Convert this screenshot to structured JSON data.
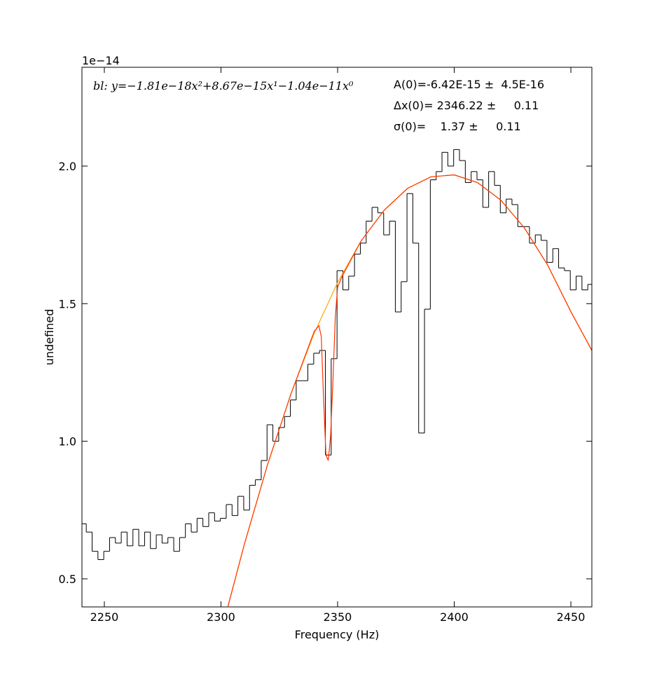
{
  "chart_data": {
    "type": "line",
    "xlabel": "Frequency (Hz)",
    "ylabel": "undefined",
    "y_offset_label": "1e−14",
    "annotations": [
      "bl: y=−1.81e−18x²+8.67e−15x¹−1.04e−11x⁰",
      "A(0)=-6.42E-15 ±  4.5E-16",
      "Δx(0)= 2346.22 ±     0.11",
      "σ(0)=    1.37 ±     0.11"
    ],
    "xlim": [
      2240.4,
      2459
    ],
    "ylim": [
      0.398,
      2.359
    ],
    "xticks": [
      2250,
      2300,
      2350,
      2400,
      2450
    ],
    "yticks": [
      0.5,
      {
        "value": 1,
        "label": "1.0"
      },
      1.5,
      {
        "value": 2,
        "label": "2.0"
      }
    ],
    "series": [
      {
        "style": "steps",
        "color": "#000000",
        "x": [
          2241,
          2243.5,
          2246,
          2248.5,
          2251,
          2253.5,
          2256,
          2258.5,
          2261,
          2263.5,
          2266,
          2268.5,
          2271,
          2273.5,
          2276,
          2278.5,
          2281,
          2283.5,
          2286,
          2288.5,
          2291,
          2293.5,
          2296,
          2298.5,
          2301,
          2303.5,
          2306,
          2308.5,
          2311,
          2313.5,
          2316,
          2318.5,
          2321,
          2323.5,
          2326,
          2328.5,
          2331,
          2333.5,
          2336,
          2338.5,
          2341,
          2343.5,
          2346,
          2348.5,
          2351,
          2353.5,
          2356,
          2358.5,
          2361,
          2363.5,
          2366,
          2368.5,
          2371,
          2373.5,
          2376,
          2378.5,
          2381,
          2383.5,
          2386,
          2388.5,
          2391,
          2393.5,
          2396,
          2398.5,
          2401,
          2403.5,
          2406,
          2408.5,
          2411,
          2413.5,
          2416,
          2418.5,
          2421,
          2423.5,
          2426,
          2428.5,
          2431,
          2433.5,
          2436,
          2438.5,
          2441,
          2443.5,
          2446,
          2448.5,
          2451,
          2453.5,
          2456,
          2458.5
        ],
        "values": [
          0.7,
          0.67,
          0.6,
          0.57,
          0.6,
          0.65,
          0.63,
          0.67,
          0.62,
          0.68,
          0.62,
          0.67,
          0.61,
          0.66,
          0.63,
          0.65,
          0.6,
          0.65,
          0.7,
          0.67,
          0.72,
          0.69,
          0.74,
          0.71,
          0.72,
          0.77,
          0.73,
          0.8,
          0.75,
          0.84,
          0.86,
          0.93,
          1.06,
          1.0,
          1.05,
          1.09,
          1.15,
          1.22,
          1.22,
          1.28,
          1.32,
          1.33,
          0.95,
          1.3,
          1.62,
          1.55,
          1.6,
          1.68,
          1.72,
          1.8,
          1.85,
          1.83,
          1.75,
          1.8,
          1.47,
          1.58,
          1.9,
          1.72,
          1.03,
          1.48,
          1.95,
          1.98,
          2.05,
          2.0,
          2.06,
          2.02,
          1.94,
          1.98,
          1.95,
          1.85,
          1.98,
          1.93,
          1.83,
          1.88,
          1.86,
          1.78,
          1.78,
          1.72,
          1.75,
          1.73,
          1.65,
          1.7,
          1.63,
          1.62,
          1.55,
          1.6,
          1.55,
          1.57
        ]
      },
      {
        "style": "curve",
        "color": "#ffa500",
        "x": [
          2303,
          2310,
          2320,
          2330,
          2340,
          2350,
          2360,
          2370,
          2380,
          2390,
          2400,
          2410,
          2420,
          2430,
          2440,
          2450,
          2459
        ],
        "values": [
          0.4,
          0.625,
          0.916,
          1.172,
          1.393,
          1.577,
          1.727,
          1.84,
          1.919,
          1.961,
          1.968,
          1.94,
          1.876,
          1.776,
          1.641,
          1.471,
          1.33
        ]
      },
      {
        "style": "curve",
        "color": "#ff3300",
        "x": [
          2303,
          2310,
          2320,
          2330,
          2340,
          2342,
          2343,
          2344,
          2345,
          2346,
          2347,
          2348,
          2349,
          2350,
          2352,
          2360,
          2370,
          2380,
          2390,
          2400,
          2410,
          2420,
          2430,
          2440,
          2450,
          2459
        ],
        "values": [
          0.4,
          0.625,
          0.916,
          1.172,
          1.4,
          1.42,
          1.38,
          1.15,
          0.95,
          0.93,
          1.02,
          1.22,
          1.45,
          1.56,
          1.6,
          1.727,
          1.84,
          1.919,
          1.961,
          1.968,
          1.94,
          1.876,
          1.776,
          1.641,
          1.471,
          1.33
        ]
      }
    ]
  }
}
